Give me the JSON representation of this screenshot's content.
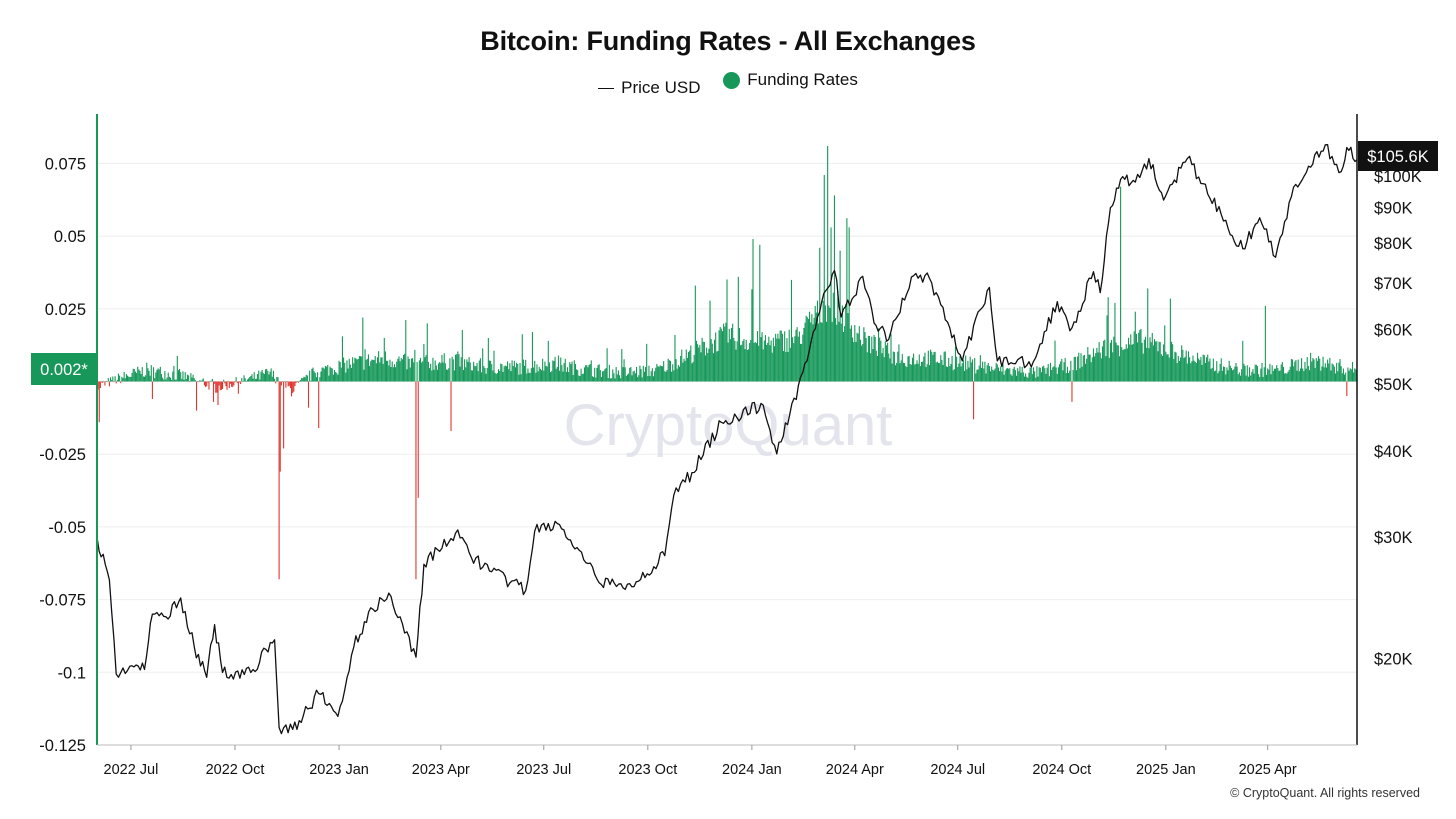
{
  "chart_data": {
    "type": "bar",
    "title": "Bitcoin: Funding Rates - All Exchanges",
    "legend": [
      {
        "name": "Price USD",
        "symbol": "line",
        "color": "#111111"
      },
      {
        "name": "Funding Rates",
        "symbol": "dot",
        "color": "#17985a"
      }
    ],
    "legend_position": "top-center",
    "x_range": [
      "2022-06-01",
      "2025-06-19"
    ],
    "x_ticks": [
      {
        "label": "2022 Jul",
        "date": "2022-07-01"
      },
      {
        "label": "2022 Oct",
        "date": "2022-10-01"
      },
      {
        "label": "2023 Jan",
        "date": "2023-01-01"
      },
      {
        "label": "2023 Apr",
        "date": "2023-04-01"
      },
      {
        "label": "2023 Jul",
        "date": "2023-07-01"
      },
      {
        "label": "2023 Oct",
        "date": "2023-10-01"
      },
      {
        "label": "2024 Jan",
        "date": "2024-01-01"
      },
      {
        "label": "2024 Apr",
        "date": "2024-04-01"
      },
      {
        "label": "2024 Jul",
        "date": "2024-07-01"
      },
      {
        "label": "2024 Oct",
        "date": "2024-10-01"
      },
      {
        "label": "2025 Jan",
        "date": "2025-01-01"
      },
      {
        "label": "2025 Apr",
        "date": "2025-04-01"
      }
    ],
    "y_left": {
      "ticks": [
        0.075,
        0.05,
        0.025,
        0,
        -0.025,
        -0.05,
        -0.075,
        -0.1,
        -0.125
      ],
      "tick_labels": [
        "0.075",
        "0.05",
        "0.025",
        "",
        "-0.025",
        "-0.05",
        "-0.075",
        "-0.1",
        "-0.125"
      ],
      "range": [
        -0.125,
        0.092
      ]
    },
    "y_right": {
      "scale": "log",
      "range": [
        15000,
        123000
      ],
      "ticks": [
        20000,
        30000,
        40000,
        50000,
        60000,
        70000,
        80000,
        90000,
        100000
      ],
      "tick_labels": [
        "$20K",
        "$30K",
        "$40K",
        "$50K",
        "$60K",
        "$70K",
        "$80K",
        "$90K",
        "$100K"
      ]
    },
    "current_funding_label": "0.002*",
    "current_price_label": "$105.6K",
    "funding_colors": {
      "positive": "#17985a",
      "negative": "#e0362f"
    },
    "funding_baseline": 0.004,
    "funding_noise": 0.003,
    "funding_series": [
      [
        "2022-06-01",
        -0.002
      ],
      [
        "2022-06-20",
        0.001
      ],
      [
        "2022-07-15",
        0.004
      ],
      [
        "2022-08-15",
        0.002
      ],
      [
        "2022-09-15",
        -0.002
      ],
      [
        "2022-10-15",
        0.001
      ],
      [
        "2022-11-01",
        0.003
      ],
      [
        "2022-11-20",
        -0.003
      ],
      [
        "2022-12-10",
        0.003
      ],
      [
        "2023-01-10",
        0.006
      ],
      [
        "2023-02-10",
        0.008
      ],
      [
        "2023-03-10",
        0.006
      ],
      [
        "2023-04-10",
        0.007
      ],
      [
        "2023-05-10",
        0.005
      ],
      [
        "2023-06-10",
        0.005
      ],
      [
        "2023-07-10",
        0.006
      ],
      [
        "2023-08-10",
        0.004
      ],
      [
        "2023-09-10",
        0.003
      ],
      [
        "2023-10-10",
        0.004
      ],
      [
        "2023-11-10",
        0.01
      ],
      [
        "2023-12-10",
        0.016
      ],
      [
        "2024-01-10",
        0.013
      ],
      [
        "2024-02-10",
        0.015
      ],
      [
        "2024-03-10",
        0.028
      ],
      [
        "2024-04-10",
        0.014
      ],
      [
        "2024-05-10",
        0.008
      ],
      [
        "2024-06-10",
        0.008
      ],
      [
        "2024-07-10",
        0.006
      ],
      [
        "2024-08-10",
        0.004
      ],
      [
        "2024-09-10",
        0.003
      ],
      [
        "2024-10-10",
        0.006
      ],
      [
        "2024-11-10",
        0.012
      ],
      [
        "2024-12-10",
        0.014
      ],
      [
        "2025-01-10",
        0.01
      ],
      [
        "2025-02-10",
        0.006
      ],
      [
        "2025-03-10",
        0.004
      ],
      [
        "2025-04-10",
        0.004
      ],
      [
        "2025-05-10",
        0.007
      ],
      [
        "2025-06-19",
        0.004
      ]
    ],
    "funding_spikes": [
      [
        "2022-06-03",
        -0.014
      ],
      [
        "2022-07-20",
        -0.006
      ],
      [
        "2022-08-28",
        -0.01
      ],
      [
        "2022-09-12",
        -0.007
      ],
      [
        "2022-11-09",
        -0.068
      ],
      [
        "2022-11-10",
        -0.031
      ],
      [
        "2022-11-13",
        -0.023
      ],
      [
        "2022-12-05",
        -0.009
      ],
      [
        "2022-12-14",
        -0.016
      ],
      [
        "2023-01-22",
        0.022
      ],
      [
        "2023-02-10",
        0.015
      ],
      [
        "2023-03-10",
        -0.068
      ],
      [
        "2023-03-12",
        -0.04
      ],
      [
        "2023-03-20",
        0.02
      ],
      [
        "2023-04-10",
        -0.017
      ],
      [
        "2023-06-21",
        0.017
      ],
      [
        "2023-07-05",
        0.014
      ],
      [
        "2023-10-25",
        0.016
      ],
      [
        "2023-11-12",
        0.033
      ],
      [
        "2023-12-20",
        0.036
      ],
      [
        "2024-01-02",
        0.049
      ],
      [
        "2024-01-08",
        0.047
      ],
      [
        "2024-02-26",
        0.026
      ],
      [
        "2024-03-01",
        0.046
      ],
      [
        "2024-03-05",
        0.071
      ],
      [
        "2024-03-08",
        0.081
      ],
      [
        "2024-03-11",
        0.053
      ],
      [
        "2024-03-14",
        0.064
      ],
      [
        "2024-03-19",
        0.045
      ],
      [
        "2024-03-27",
        0.053
      ],
      [
        "2024-04-10",
        0.017
      ],
      [
        "2024-07-15",
        -0.013
      ],
      [
        "2024-10-10",
        -0.007
      ],
      [
        "2024-11-11",
        0.029
      ],
      [
        "2024-11-22",
        0.067
      ],
      [
        "2024-12-05",
        0.024
      ],
      [
        "2025-03-30",
        0.026
      ],
      [
        "2025-06-10",
        -0.005
      ]
    ],
    "price_series": [
      [
        "2022-06-01",
        30000
      ],
      [
        "2022-06-12",
        26000
      ],
      [
        "2022-06-18",
        19000
      ],
      [
        "2022-06-30",
        19500
      ],
      [
        "2022-07-13",
        19300
      ],
      [
        "2022-07-20",
        23200
      ],
      [
        "2022-08-01",
        23000
      ],
      [
        "2022-08-14",
        24500
      ],
      [
        "2022-08-26",
        20800
      ],
      [
        "2022-09-06",
        18800
      ],
      [
        "2022-09-13",
        22400
      ],
      [
        "2022-09-20",
        19100
      ],
      [
        "2022-10-15",
        19100
      ],
      [
        "2022-11-05",
        21300
      ],
      [
        "2022-11-09",
        15900
      ],
      [
        "2022-11-21",
        15800
      ],
      [
        "2022-12-14",
        17800
      ],
      [
        "2022-12-31",
        16500
      ],
      [
        "2023-01-14",
        20800
      ],
      [
        "2023-01-29",
        23700
      ],
      [
        "2023-02-16",
        24600
      ],
      [
        "2023-03-10",
        20100
      ],
      [
        "2023-03-17",
        27400
      ],
      [
        "2023-04-14",
        30400
      ],
      [
        "2023-04-26",
        28500
      ],
      [
        "2023-05-14",
        26800
      ],
      [
        "2023-06-15",
        25100
      ],
      [
        "2023-06-23",
        30600
      ],
      [
        "2023-07-13",
        31400
      ],
      [
        "2023-08-17",
        26100
      ],
      [
        "2023-09-11",
        25200
      ],
      [
        "2023-10-16",
        28200
      ],
      [
        "2023-10-24",
        34500
      ],
      [
        "2023-11-09",
        37200
      ],
      [
        "2023-12-05",
        44000
      ],
      [
        "2024-01-11",
        46600
      ],
      [
        "2024-01-23",
        39600
      ],
      [
        "2024-02-15",
        52000
      ],
      [
        "2024-02-28",
        62500
      ],
      [
        "2024-03-14",
        73000
      ],
      [
        "2024-03-20",
        62500
      ],
      [
        "2024-04-08",
        71600
      ],
      [
        "2024-04-18",
        61300
      ],
      [
        "2024-05-01",
        58000
      ],
      [
        "2024-05-21",
        71400
      ],
      [
        "2024-06-06",
        71100
      ],
      [
        "2024-06-24",
        60300
      ],
      [
        "2024-07-05",
        54000
      ],
      [
        "2024-07-29",
        69000
      ],
      [
        "2024-08-05",
        54000
      ],
      [
        "2024-09-06",
        53900
      ],
      [
        "2024-09-27",
        65800
      ],
      [
        "2024-10-10",
        60300
      ],
      [
        "2024-10-29",
        72700
      ],
      [
        "2024-11-04",
        67800
      ],
      [
        "2024-11-13",
        90000
      ],
      [
        "2024-11-22",
        98900
      ],
      [
        "2024-12-05",
        98000
      ],
      [
        "2024-12-17",
        106000
      ],
      [
        "2024-12-30",
        92300
      ],
      [
        "2025-01-20",
        106000
      ],
      [
        "2025-02-03",
        97500
      ],
      [
        "2025-02-25",
        84000
      ],
      [
        "2025-03-10",
        78500
      ],
      [
        "2025-03-25",
        87000
      ],
      [
        "2025-04-08",
        76300
      ],
      [
        "2025-04-22",
        93400
      ],
      [
        "2025-05-09",
        103000
      ],
      [
        "2025-05-22",
        111000
      ],
      [
        "2025-06-05",
        101500
      ],
      [
        "2025-06-10",
        110000
      ],
      [
        "2025-06-19",
        105600
      ]
    ],
    "grid": true
  },
  "watermark": "CryptoQuant",
  "footer": {
    "credit": "© CryptoQuant. All rights reserved"
  },
  "colors": {
    "positive": "#17985a",
    "negative": "#e0362f",
    "price": "#111111",
    "grid": "#eeeeee"
  }
}
